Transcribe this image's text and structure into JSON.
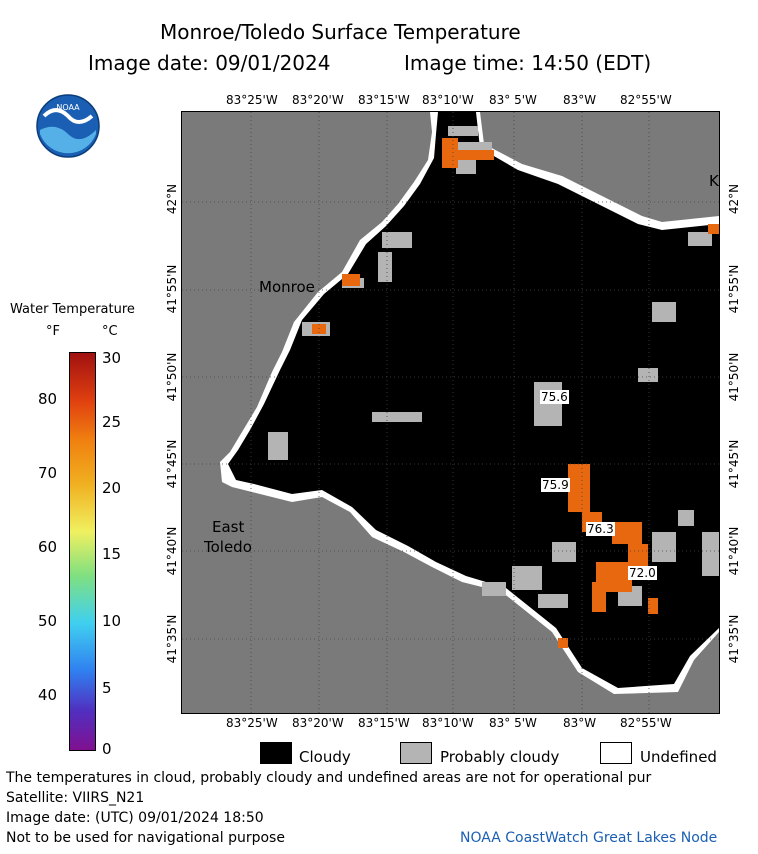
{
  "header": {
    "title": "Monroe/Toledo Surface Temperature",
    "image_date": "Image date: 09/01/2024",
    "image_time": "Image time: 14:50 (EDT)"
  },
  "logo": {
    "text": "NOAA"
  },
  "legend": {
    "title": "Water Temperature",
    "unit_f": "°F",
    "unit_c": "°C",
    "fahrenheit_ticks": [
      "80",
      "70",
      "60",
      "50",
      "40"
    ],
    "celsius_ticks": [
      "30",
      "25",
      "20",
      "15",
      "10",
      "5",
      "0"
    ],
    "colors": [
      "#a01010",
      "#e06010",
      "#f0b020",
      "#f0f060",
      "#80e080",
      "#40d0f0",
      "#3080f0",
      "#5030c0",
      "#801090"
    ]
  },
  "map": {
    "top_lon_labels": [
      "83°25'W",
      "83°20'W",
      "83°15'W",
      "83°10'W",
      "83° 5'W",
      "83°W",
      "82°55'W"
    ],
    "bottom_lon_labels": [
      "83°25'W",
      "83°20'W",
      "83°15'W",
      "83°10'W",
      "83° 5'W",
      "83°W",
      "82°55'W"
    ],
    "left_lat_labels": [
      "42°N",
      "41°55'N",
      "41°50'N",
      "41°45'N",
      "41°40'N",
      "41°35'N"
    ],
    "right_lat_labels": [
      "42°N",
      "41°55'N",
      "41°50'N",
      "41°45'N",
      "41°40'N",
      "41°35'N"
    ],
    "place_labels": {
      "monroe": "Monroe",
      "east": "East",
      "toledo": "Toledo",
      "k": "K"
    },
    "temperature_labels": [
      "75.6",
      "75.9",
      "76.3",
      "72.0"
    ],
    "colors": {
      "land": "#7a7a7a",
      "cloudy": "#000000",
      "probably_cloudy": "#b4b4b4",
      "undefined": "#ffffff",
      "warm_water": "#e86810"
    }
  },
  "key": {
    "cloudy": "Cloudy",
    "probably_cloudy": "Probably cloudy",
    "undefined": "Undefined"
  },
  "footer": {
    "line1": "The temperatures in cloud, probably cloudy and undefined areas are not for operational pur",
    "line2": "Satellite: VIIRS_N21",
    "line3": "Image date: (UTC) 09/01/2024  18:50",
    "line4": "Not to be used for navigational purpose",
    "credit": "NOAA CoastWatch Great Lakes Node"
  }
}
